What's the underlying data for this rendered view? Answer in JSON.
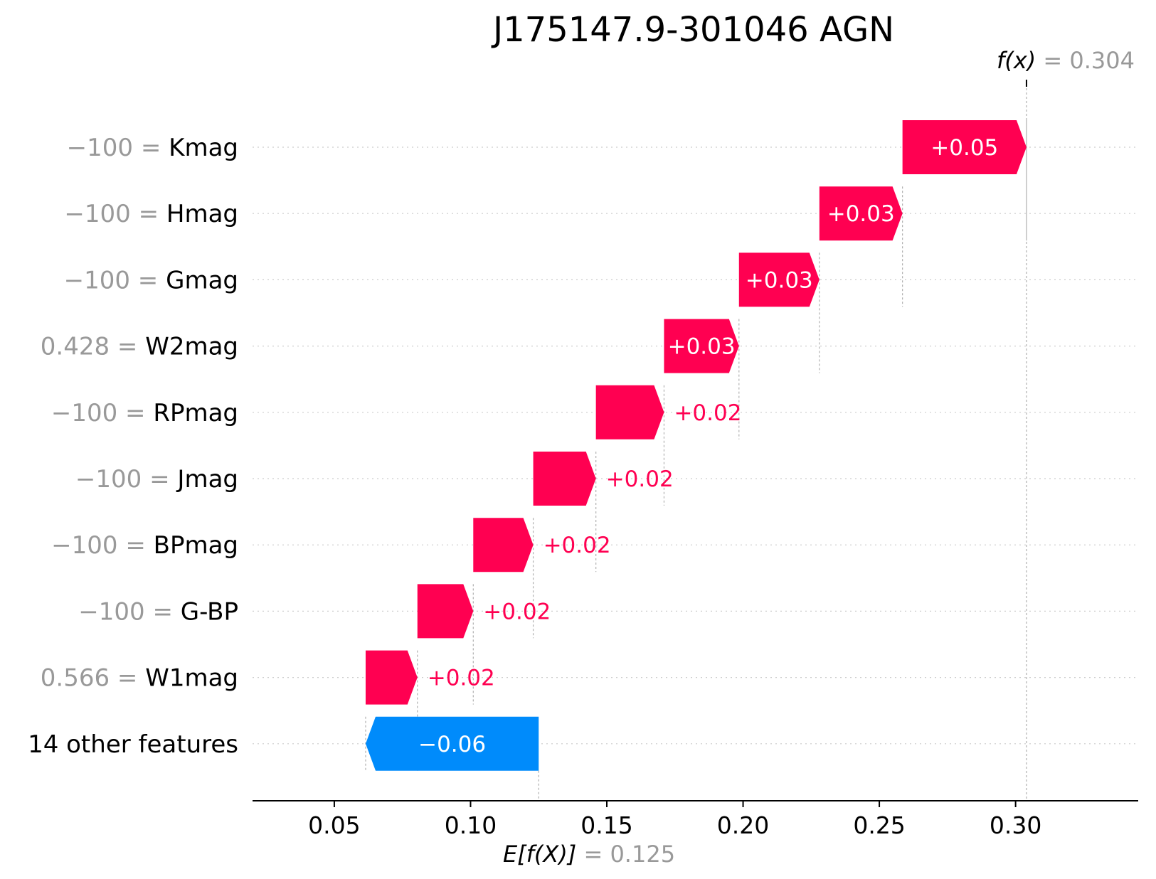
{
  "chart_data": {
    "type": "waterfall",
    "title": "J175147.9-301046 AGN",
    "base_value": 0.125,
    "final_value": 0.304,
    "base_label_math": "E[f(X)]",
    "base_label_value": "= 0.125",
    "final_label_math": "f(x)",
    "final_label_value": "= 0.304",
    "xlim": [
      0.02,
      0.345
    ],
    "xticks": [
      0.05,
      0.1,
      0.15,
      0.2,
      0.25,
      0.3
    ],
    "xtick_labels": [
      "0.05",
      "0.10",
      "0.15",
      "0.20",
      "0.25",
      "0.30"
    ],
    "features": [
      {
        "value_text": "−100 =",
        "name": "Kmag",
        "start": 0.2585,
        "end": 0.304,
        "label": "+0.05",
        "label_inside": true
      },
      {
        "value_text": "−100 =",
        "name": "Hmag",
        "start": 0.228,
        "end": 0.2585,
        "label": "+0.03",
        "label_inside": true
      },
      {
        "value_text": "−100 =",
        "name": "Gmag",
        "start": 0.1985,
        "end": 0.228,
        "label": "+0.03",
        "label_inside": true
      },
      {
        "value_text": "0.428 =",
        "name": "W2mag",
        "start": 0.171,
        "end": 0.1985,
        "label": "+0.03",
        "label_inside": true
      },
      {
        "value_text": "−100 =",
        "name": "RPmag",
        "start": 0.146,
        "end": 0.171,
        "label": "+0.02",
        "label_inside": false
      },
      {
        "value_text": "−100 =",
        "name": "Jmag",
        "start": 0.123,
        "end": 0.146,
        "label": "+0.02",
        "label_inside": false
      },
      {
        "value_text": "−100 =",
        "name": "BPmag",
        "start": 0.101,
        "end": 0.123,
        "label": "+0.02",
        "label_inside": false
      },
      {
        "value_text": "−100 =",
        "name": "G-BP",
        "start": 0.0805,
        "end": 0.101,
        "label": "+0.02",
        "label_inside": false
      },
      {
        "value_text": "0.566 =",
        "name": "W1mag",
        "start": 0.0615,
        "end": 0.0805,
        "label": "+0.02",
        "label_inside": false
      },
      {
        "value_text": "",
        "name": "14 other features",
        "start": 0.125,
        "end": 0.0615,
        "label": "−0.06",
        "label_inside": true
      }
    ]
  },
  "colors": {
    "positive": "#ff0051",
    "negative": "#008bfb",
    "gray_text": "#999999"
  }
}
